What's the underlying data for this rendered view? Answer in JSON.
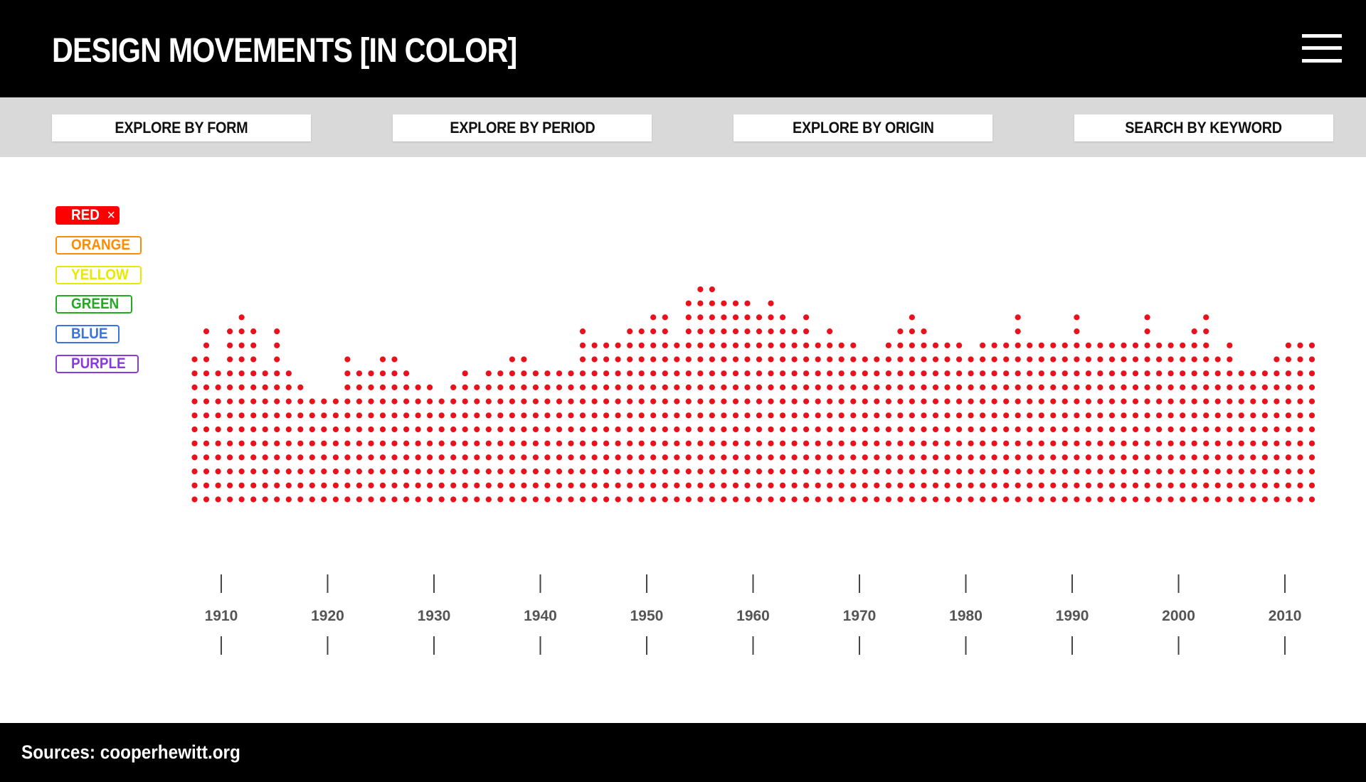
{
  "header": {
    "title": "DESIGN MOVEMENTS [IN COLOR]"
  },
  "nav": {
    "buttons": [
      "EXPLORE BY FORM",
      "EXPLORE BY PERIOD",
      "EXPLORE BY ORIGIN",
      "SEARCH BY KEYWORD"
    ]
  },
  "legend": {
    "items": [
      {
        "label": "RED",
        "color": "#ff0000",
        "active": true,
        "close": "×"
      },
      {
        "label": "ORANGE",
        "color": "#ff8c00",
        "active": false
      },
      {
        "label": "YELLOW",
        "color": "#e8e800",
        "active": false
      },
      {
        "label": "GREEN",
        "color": "#22aa22",
        "active": false
      },
      {
        "label": "BLUE",
        "color": "#3a74e0",
        "active": false
      },
      {
        "label": "PURPLE",
        "color": "#8a3ad8",
        "active": false
      }
    ]
  },
  "chart_data": {
    "type": "scatter",
    "style": "dot-column",
    "title": "",
    "xlabel": "",
    "ylabel": "",
    "series_color": "#e8121c",
    "x_ticks": [
      1910,
      1920,
      1930,
      1940,
      1950,
      1960,
      1970,
      1980,
      1990,
      2000,
      2010
    ],
    "xlim": [
      1909,
      2011
    ],
    "grid": false,
    "legend": "top-left",
    "x": [
      1908,
      1909,
      1910,
      1911,
      1912,
      1913,
      1914,
      1915,
      1916,
      1917,
      1918,
      1919,
      1920,
      1921,
      1922,
      1923,
      1924,
      1925,
      1926,
      1927,
      1928,
      1929,
      1930,
      1931,
      1932,
      1933,
      1934,
      1935,
      1936,
      1937,
      1938,
      1939,
      1940,
      1941,
      1942,
      1943,
      1944,
      1945,
      1946,
      1947,
      1948,
      1949,
      1950,
      1951,
      1952,
      1953,
      1954,
      1955,
      1956,
      1957,
      1958,
      1959,
      1960,
      1961,
      1962,
      1963,
      1964,
      1965,
      1966,
      1967,
      1968,
      1969,
      1970,
      1971,
      1972,
      1973,
      1974,
      1975,
      1976,
      1977,
      1978,
      1979,
      1980,
      1981,
      1982,
      1983,
      1984,
      1985,
      1986,
      1987,
      1988,
      1989,
      1990,
      1991,
      1992,
      1993,
      1994,
      1995,
      1996,
      1997,
      1998,
      1999,
      2000,
      2001,
      2002,
      2003
    ],
    "values": [
      11,
      13,
      10,
      13,
      14,
      13,
      10,
      13,
      10,
      9,
      8,
      8,
      8,
      11,
      10,
      10,
      11,
      11,
      10,
      9,
      9,
      8,
      9,
      10,
      9,
      10,
      10,
      11,
      11,
      10,
      10,
      10,
      10,
      13,
      12,
      12,
      12,
      13,
      13,
      14,
      14,
      12,
      15,
      16,
      16,
      15,
      15,
      15,
      14,
      15,
      14,
      13,
      14,
      12,
      13,
      12,
      12,
      11,
      11,
      12,
      13,
      14,
      13,
      12,
      12,
      12,
      11,
      12,
      12,
      12,
      14,
      12,
      12,
      12,
      12,
      14,
      12,
      12,
      12,
      12,
      12,
      14,
      12,
      12,
      12,
      13,
      14,
      11,
      12,
      10,
      10,
      10,
      11,
      12,
      12,
      12
    ]
  },
  "footer": {
    "source": "Sources: cooperhewitt.org"
  }
}
